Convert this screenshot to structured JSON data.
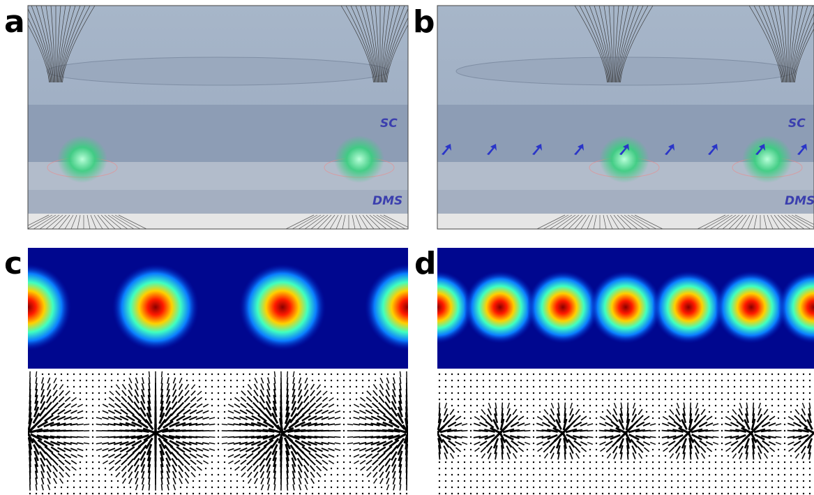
{
  "panels": [
    {
      "label": "a",
      "layers": [
        "SC",
        "DMS"
      ]
    },
    {
      "label": "b",
      "layers": [
        "SC",
        "DMS"
      ]
    },
    {
      "label": "c"
    },
    {
      "label": "d"
    }
  ]
}
